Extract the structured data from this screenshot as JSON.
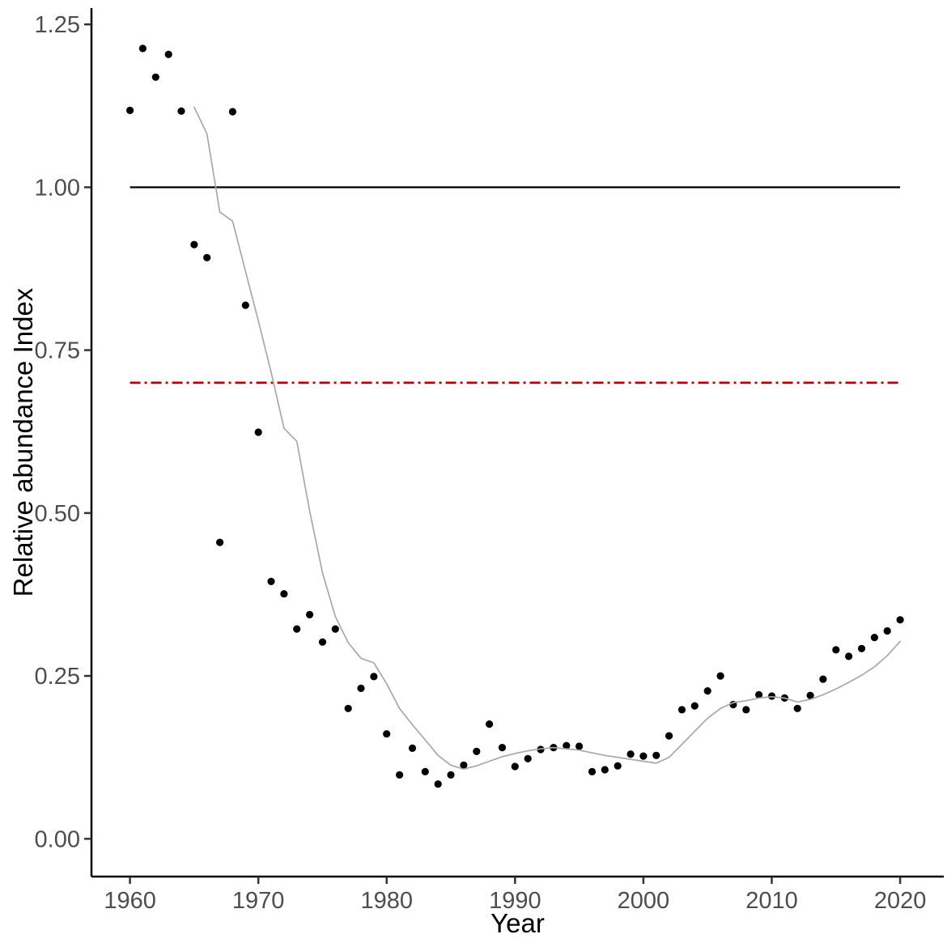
{
  "chart_data": {
    "type": "scatter",
    "title": "",
    "xlabel": "Year",
    "ylabel": "Relative abundance Index",
    "xlim": [
      1957.0,
      2023.4
    ],
    "ylim": [
      -0.058,
      1.275
    ],
    "grid": false,
    "legend": false,
    "x_ticks": [
      {
        "v": 1960,
        "label": "1960"
      },
      {
        "v": 1970,
        "label": "1970"
      },
      {
        "v": 1980,
        "label": "1980"
      },
      {
        "v": 1990,
        "label": "1990"
      },
      {
        "v": 2000,
        "label": "2000"
      },
      {
        "v": 2010,
        "label": "2010"
      },
      {
        "v": 2020,
        "label": "2020"
      }
    ],
    "y_ticks": [
      {
        "v": 0.0,
        "label": "0.00"
      },
      {
        "v": 0.25,
        "label": "0.25"
      },
      {
        "v": 0.5,
        "label": "0.50"
      },
      {
        "v": 0.75,
        "label": "0.75"
      },
      {
        "v": 1.0,
        "label": "1.00"
      },
      {
        "v": 1.25,
        "label": "1.25"
      }
    ],
    "series": [
      {
        "name": "annual-relative-abundance-points",
        "type": "scatter",
        "color": "#000000",
        "marker_radius": 4.6,
        "points": [
          [
            1960,
            1.118
          ],
          [
            1961,
            1.213
          ],
          [
            1962,
            1.169
          ],
          [
            1963,
            1.204
          ],
          [
            1964,
            1.117
          ],
          [
            1965,
            0.912
          ],
          [
            1966,
            0.892
          ],
          [
            1967,
            0.455
          ],
          [
            1968,
            1.116
          ],
          [
            1969,
            0.819
          ],
          [
            1970,
            0.624
          ],
          [
            1971,
            0.395
          ],
          [
            1972,
            0.376
          ],
          [
            1973,
            0.322
          ],
          [
            1974,
            0.344
          ],
          [
            1975,
            0.302
          ],
          [
            1976,
            0.322
          ],
          [
            1977,
            0.2
          ],
          [
            1978,
            0.231
          ],
          [
            1979,
            0.249
          ],
          [
            1980,
            0.161
          ],
          [
            1981,
            0.098
          ],
          [
            1982,
            0.139
          ],
          [
            1983,
            0.103
          ],
          [
            1984,
            0.084
          ],
          [
            1985,
            0.098
          ],
          [
            1986,
            0.113
          ],
          [
            1987,
            0.134
          ],
          [
            1988,
            0.176
          ],
          [
            1989,
            0.14
          ],
          [
            1990,
            0.111
          ],
          [
            1991,
            0.123
          ],
          [
            1992,
            0.137
          ],
          [
            1993,
            0.14
          ],
          [
            1994,
            0.143
          ],
          [
            1995,
            0.142
          ],
          [
            1996,
            0.103
          ],
          [
            1997,
            0.106
          ],
          [
            1998,
            0.112
          ],
          [
            1999,
            0.13
          ],
          [
            2000,
            0.127
          ],
          [
            2001,
            0.128
          ],
          [
            2002,
            0.158
          ],
          [
            2003,
            0.198
          ],
          [
            2004,
            0.204
          ],
          [
            2005,
            0.227
          ],
          [
            2006,
            0.25
          ],
          [
            2007,
            0.206
          ],
          [
            2008,
            0.198
          ],
          [
            2009,
            0.221
          ],
          [
            2010,
            0.219
          ],
          [
            2011,
            0.216
          ],
          [
            2012,
            0.2
          ],
          [
            2013,
            0.22
          ],
          [
            2014,
            0.245
          ],
          [
            2015,
            0.29
          ],
          [
            2016,
            0.28
          ],
          [
            2017,
            0.292
          ],
          [
            2018,
            0.309
          ],
          [
            2019,
            0.319
          ],
          [
            2020,
            0.336
          ]
        ]
      },
      {
        "name": "smoothed-trend-line",
        "type": "line",
        "color": "#a8a8a8",
        "stroke_width": 1.7,
        "points": [
          [
            1965,
            1.123
          ],
          [
            1966,
            1.082
          ],
          [
            1967,
            0.962
          ],
          [
            1968,
            0.948
          ],
          [
            1969,
            0.871
          ],
          [
            1970,
            0.795
          ],
          [
            1971,
            0.716
          ],
          [
            1972,
            0.63
          ],
          [
            1973,
            0.61
          ],
          [
            1974,
            0.503
          ],
          [
            1975,
            0.408
          ],
          [
            1976,
            0.341
          ],
          [
            1977,
            0.301
          ],
          [
            1978,
            0.277
          ],
          [
            1979,
            0.27
          ],
          [
            1980,
            0.238
          ],
          [
            1981,
            0.2
          ],
          [
            1982,
            0.175
          ],
          [
            1983,
            0.152
          ],
          [
            1984,
            0.128
          ],
          [
            1985,
            0.113
          ],
          [
            1986,
            0.107
          ],
          [
            1987,
            0.112
          ],
          [
            1988,
            0.119
          ],
          [
            1989,
            0.126
          ],
          [
            1990,
            0.131
          ],
          [
            1991,
            0.135
          ],
          [
            1992,
            0.138
          ],
          [
            1993,
            0.14
          ],
          [
            1994,
            0.138
          ],
          [
            1995,
            0.136
          ],
          [
            1996,
            0.132
          ],
          [
            1997,
            0.128
          ],
          [
            1998,
            0.125
          ],
          [
            1999,
            0.122
          ],
          [
            2000,
            0.119
          ],
          [
            2001,
            0.116
          ],
          [
            2002,
            0.125
          ],
          [
            2003,
            0.145
          ],
          [
            2004,
            0.165
          ],
          [
            2005,
            0.185
          ],
          [
            2006,
            0.2
          ],
          [
            2007,
            0.209
          ],
          [
            2008,
            0.212
          ],
          [
            2009,
            0.216
          ],
          [
            2010,
            0.218
          ],
          [
            2011,
            0.216
          ],
          [
            2012,
            0.21
          ],
          [
            2013,
            0.214
          ],
          [
            2014,
            0.221
          ],
          [
            2015,
            0.23
          ],
          [
            2016,
            0.24
          ],
          [
            2017,
            0.251
          ],
          [
            2018,
            0.264
          ],
          [
            2019,
            0.281
          ],
          [
            2020,
            0.303
          ]
        ]
      }
    ],
    "reference_lines": [
      {
        "name": "baseline-reference",
        "y": 1.0,
        "x_start": 1960,
        "x_end": 2020,
        "color": "#000000",
        "style": "solid",
        "stroke_width": 2.2
      },
      {
        "name": "threshold-reference",
        "y": 0.7,
        "x_start": 1960,
        "x_end": 2020,
        "color": "#b30000",
        "style": "dotdash",
        "stroke_width": 2.8,
        "dash_pattern": "13 5 3 5"
      }
    ],
    "axis_style": {
      "axis_line_color": "#000000",
      "tick_mark_color": "#333333",
      "tick_label_color": "#4d4d4d",
      "title_color": "#000000"
    }
  }
}
